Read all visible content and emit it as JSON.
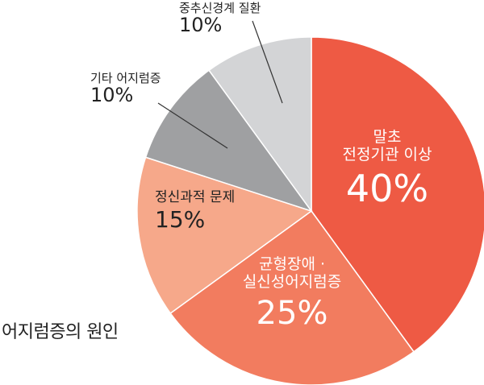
{
  "chart_data": {
    "type": "pie",
    "title": "어지럼증의 원인",
    "slices": [
      {
        "lines": [
          "말초",
          "전정기관 이상"
        ],
        "value": 40,
        "pct": "40%",
        "color": "#ee5a44",
        "text_color": "#ffffff"
      },
      {
        "lines": [
          "균형장애 ·",
          "실신성어지럼증"
        ],
        "value": 25,
        "pct": "25%",
        "color": "#f27c5f",
        "text_color": "#ffffff"
      },
      {
        "lines": [
          "정신과적 문제"
        ],
        "value": 15,
        "pct": "15%",
        "color": "#f6a88a",
        "text_color": "#222222"
      },
      {
        "lines": [
          "기타 어지럼증"
        ],
        "value": 10,
        "pct": "10%",
        "color": "#9fa0a2",
        "text_color": "#222222"
      },
      {
        "lines": [
          "중추신경계 질환"
        ],
        "value": 10,
        "pct": "10%",
        "color": "#d3d4d6",
        "text_color": "#222222"
      }
    ],
    "legend": "none"
  }
}
